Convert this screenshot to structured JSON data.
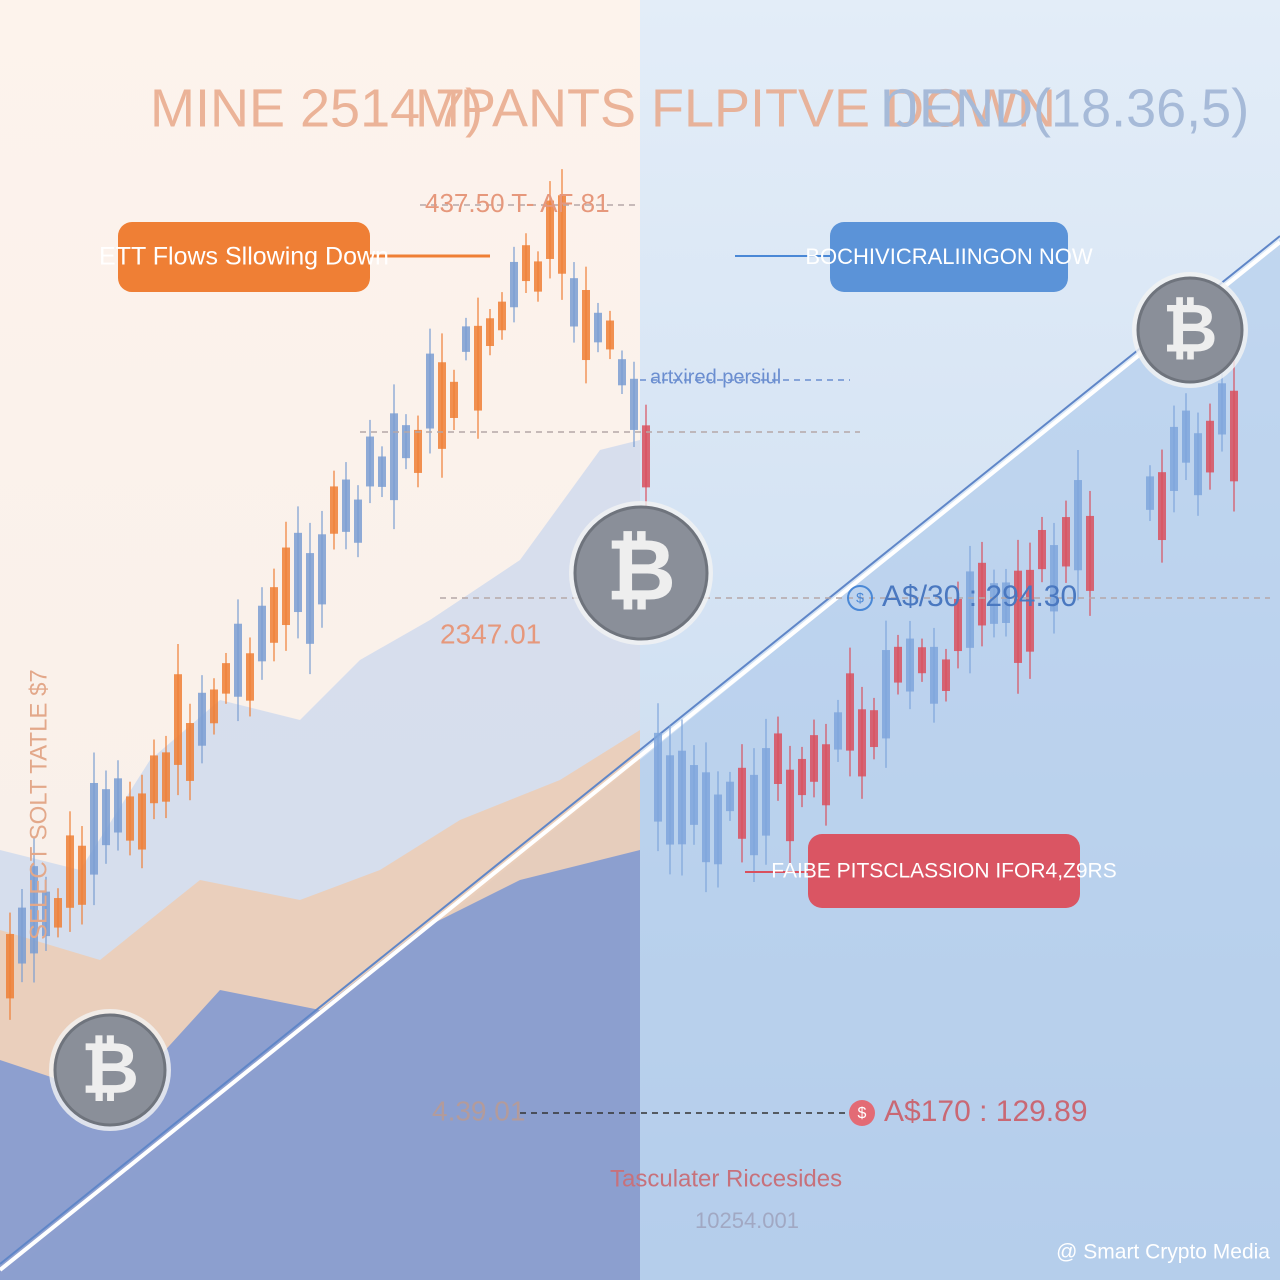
{
  "header": {
    "titles": [
      "MINE 2514 7)",
      "MPANTS FLPITVE DOWN",
      "ŊEND(18.36,5)"
    ]
  },
  "callouts": {
    "left": "ETT Flows Sllowing Down",
    "right": "BOCHIVICRALIINGON NOW",
    "bottom": "FAIBE PITSCLASSION IFOR4,Z9RS"
  },
  "labels": {
    "top_price": "437.50 T- AF 81",
    "mid_note": "artxired persiul",
    "left_price": "2347.01",
    "bottom_price": "4.39.01",
    "side_text": "SELECT SOLT TATLE $7",
    "legend_title": "Tasculater Riccesides",
    "legend_value": "10254.001"
  },
  "readouts": [
    {
      "icon": "$",
      "text": "A$/30 : 294.30"
    },
    {
      "icon": "$",
      "text": "A$170 : 129.89"
    }
  ],
  "coin_symbol": "₿",
  "watermark": "@ Smart Crypto Media"
}
